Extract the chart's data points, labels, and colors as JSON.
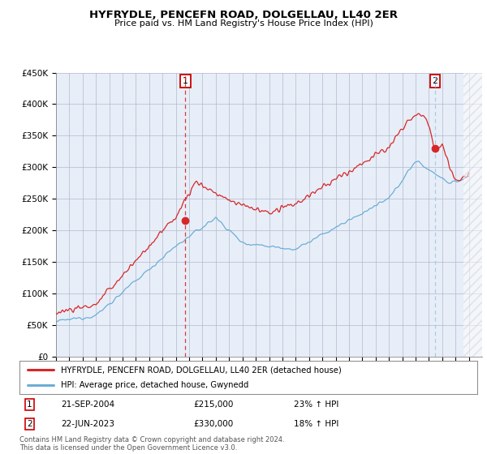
{
  "title": "HYFRYDLE, PENCEFN ROAD, DOLGELLAU, LL40 2ER",
  "subtitle": "Price paid vs. HM Land Registry's House Price Index (HPI)",
  "ylim": [
    0,
    450000
  ],
  "yticks": [
    0,
    50000,
    100000,
    150000,
    200000,
    250000,
    300000,
    350000,
    400000,
    450000
  ],
  "ytick_labels": [
    "£0",
    "£50K",
    "£100K",
    "£150K",
    "£200K",
    "£250K",
    "£300K",
    "£350K",
    "£400K",
    "£450K"
  ],
  "sale1_date": 2004.72,
  "sale1_price": 215000,
  "sale2_date": 2023.47,
  "sale2_price": 330000,
  "sale1_text": "21-SEP-2004",
  "sale1_amount": "£215,000",
  "sale1_pct": "23% ↑ HPI",
  "sale2_text": "22-JUN-2023",
  "sale2_amount": "£330,000",
  "sale2_pct": "18% ↑ HPI",
  "hpi_color": "#6baed6",
  "price_color": "#d62728",
  "marker_color": "#d62728",
  "sale1_vline_color": "#d62728",
  "sale2_vline_color": "#9ecae1",
  "background_color": "#e8eef8",
  "legend_label_price": "HYFRYDLE, PENCEFN ROAD, DOLGELLAU, LL40 2ER (detached house)",
  "legend_label_hpi": "HPI: Average price, detached house, Gwynedd",
  "footer": "Contains HM Land Registry data © Crown copyright and database right 2024.\nThis data is licensed under the Open Government Licence v3.0."
}
